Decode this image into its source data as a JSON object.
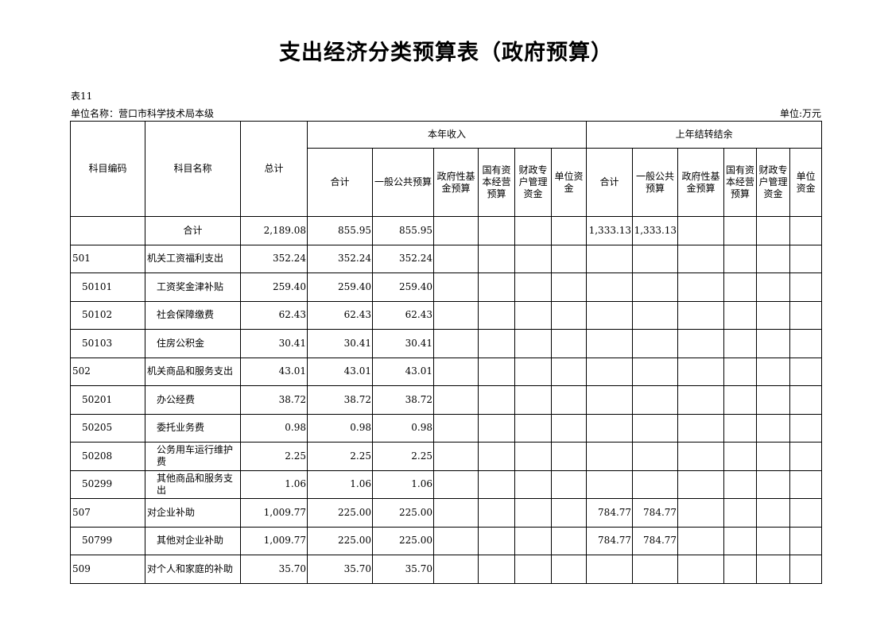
{
  "title": "支出经济分类预算表（政府预算）",
  "table_no": "表11",
  "unit_name": "单位名称：营口市科学技术局本级",
  "unit": "单位:万元",
  "headers": {
    "code": "科目编码",
    "name": "科目名称",
    "total": "总计",
    "current_year": "本年收入",
    "carryover": "上年结转结余",
    "cy_cols": [
      "合计",
      "一般公共预算",
      "政府性基金预算",
      "国有资本经营预算",
      "财政专户管理资金",
      "单位资金"
    ],
    "co_cols": [
      "合计",
      "一般公共预算",
      "政府性基金预算",
      "国有资本经营预算",
      "财政专户管理资金",
      "单位资金"
    ]
  },
  "rows": [
    {
      "code": "",
      "name": "合计",
      "level": 0,
      "values": [
        "2,189.08",
        "855.95",
        "855.95",
        "",
        "",
        "",
        "",
        "1,333.13",
        "1,333.13",
        "",
        "",
        "",
        ""
      ]
    },
    {
      "code": "501",
      "name": "机关工资福利支出",
      "level": 1,
      "values": [
        "352.24",
        "352.24",
        "352.24",
        "",
        "",
        "",
        "",
        "",
        "",
        "",
        "",
        "",
        ""
      ]
    },
    {
      "code": "50101",
      "name": "工资奖金津补贴",
      "level": 2,
      "values": [
        "259.40",
        "259.40",
        "259.40",
        "",
        "",
        "",
        "",
        "",
        "",
        "",
        "",
        "",
        ""
      ]
    },
    {
      "code": "50102",
      "name": "社会保障缴费",
      "level": 2,
      "values": [
        "62.43",
        "62.43",
        "62.43",
        "",
        "",
        "",
        "",
        "",
        "",
        "",
        "",
        "",
        ""
      ]
    },
    {
      "code": "50103",
      "name": "住房公积金",
      "level": 2,
      "values": [
        "30.41",
        "30.41",
        "30.41",
        "",
        "",
        "",
        "",
        "",
        "",
        "",
        "",
        "",
        ""
      ]
    },
    {
      "code": "502",
      "name": "机关商品和服务支出",
      "level": 1,
      "values": [
        "43.01",
        "43.01",
        "43.01",
        "",
        "",
        "",
        "",
        "",
        "",
        "",
        "",
        "",
        ""
      ]
    },
    {
      "code": "50201",
      "name": "办公经费",
      "level": 2,
      "values": [
        "38.72",
        "38.72",
        "38.72",
        "",
        "",
        "",
        "",
        "",
        "",
        "",
        "",
        "",
        ""
      ]
    },
    {
      "code": "50205",
      "name": "委托业务费",
      "level": 2,
      "values": [
        "0.98",
        "0.98",
        "0.98",
        "",
        "",
        "",
        "",
        "",
        "",
        "",
        "",
        "",
        ""
      ]
    },
    {
      "code": "50208",
      "name": "公务用车运行维护费",
      "level": 2,
      "values": [
        "2.25",
        "2.25",
        "2.25",
        "",
        "",
        "",
        "",
        "",
        "",
        "",
        "",
        "",
        ""
      ]
    },
    {
      "code": "50299",
      "name": "其他商品和服务支出",
      "level": 2,
      "values": [
        "1.06",
        "1.06",
        "1.06",
        "",
        "",
        "",
        "",
        "",
        "",
        "",
        "",
        "",
        ""
      ]
    },
    {
      "code": "507",
      "name": "对企业补助",
      "level": 1,
      "values": [
        "1,009.77",
        "225.00",
        "225.00",
        "",
        "",
        "",
        "",
        "784.77",
        "784.77",
        "",
        "",
        "",
        ""
      ]
    },
    {
      "code": "50799",
      "name": "其他对企业补助",
      "level": 2,
      "values": [
        "1,009.77",
        "225.00",
        "225.00",
        "",
        "",
        "",
        "",
        "784.77",
        "784.77",
        "",
        "",
        "",
        ""
      ]
    },
    {
      "code": "509",
      "name": "对个人和家庭的补助",
      "level": 1,
      "values": [
        "35.70",
        "35.70",
        "35.70",
        "",
        "",
        "",
        "",
        "",
        "",
        "",
        "",
        "",
        ""
      ]
    }
  ]
}
